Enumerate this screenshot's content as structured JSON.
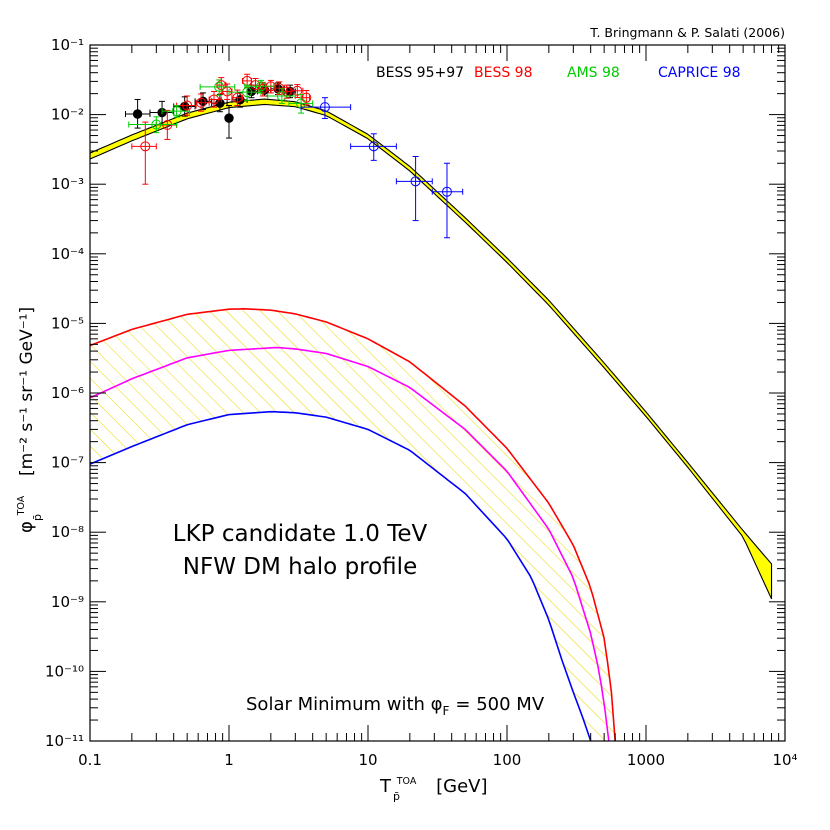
{
  "chart_data": {
    "type": "line",
    "credit": "T. Bringmann & P. Salati (2006)",
    "xlabel": {
      "base": "T",
      "sub": "p̄",
      "sup": "TOA",
      "units": "[GeV]"
    },
    "ylabel": {
      "base": "φ",
      "sub": "p̄",
      "sup": "TOA",
      "units": "[m⁻² s⁻¹ sr⁻¹ GeV⁻¹]"
    },
    "xscale": "log",
    "yscale": "log",
    "xlim": [
      0.1,
      10000
    ],
    "ylim": [
      1e-11,
      0.1
    ],
    "x_tick_labels": [
      {
        "v": 0.1,
        "label": "0.1"
      },
      {
        "v": 1,
        "label": "1"
      },
      {
        "v": 10,
        "label": "10"
      },
      {
        "v": 100,
        "label": "100"
      },
      {
        "v": 1000,
        "label": "1000"
      },
      {
        "v": 10000,
        "label": "10⁴"
      }
    ],
    "y_tick_labels": [
      {
        "v": -1,
        "label": "10⁻¹"
      },
      {
        "v": -2,
        "label": "10⁻²"
      },
      {
        "v": -3,
        "label": "10⁻³"
      },
      {
        "v": -4,
        "label": "10⁻⁴"
      },
      {
        "v": -5,
        "label": "10⁻⁵"
      },
      {
        "v": -6,
        "label": "10⁻⁶"
      },
      {
        "v": -7,
        "label": "10⁻⁷"
      },
      {
        "v": -8,
        "label": "10⁻⁸"
      },
      {
        "v": -9,
        "label": "10⁻⁹"
      },
      {
        "v": -10,
        "label": "10⁻¹⁰"
      },
      {
        "v": -11,
        "label": "10⁻¹¹"
      }
    ],
    "legend": [
      {
        "name": "BESS 95+97",
        "color": "#000000"
      },
      {
        "name": "BESS 98",
        "color": "#ff0000"
      },
      {
        "name": "AMS 98",
        "color": "#00cc00"
      },
      {
        "name": "CAPRICE 98",
        "color": "#0000ff"
      }
    ],
    "legend_position": "top-right",
    "annotations": [
      "LKP candidate 1.0 TeV",
      "NFW DM halo profile",
      "Solar Minimum with φ"
    ],
    "solar_sub": "F",
    "solar_value": "= 500 MV",
    "background_band": {
      "color": "#ffff00",
      "x": [
        0.1,
        0.2,
        0.5,
        1,
        1.8,
        3,
        5,
        10,
        20,
        50,
        100,
        200,
        500,
        1000,
        2000,
        5000,
        8000
      ],
      "upper": [
        0.0028,
        0.0051,
        0.0105,
        0.0151,
        0.0167,
        0.0153,
        0.0113,
        0.0052,
        0.0018,
        0.00033,
        8.7e-05,
        2.15e-05,
        2.7e-06,
        5.35e-07,
        1e-07,
        1.05e-08,
        3.5e-09
      ],
      "lower": [
        0.0023,
        0.0042,
        0.0087,
        0.0126,
        0.014,
        0.013,
        0.0097,
        0.0045,
        0.00155,
        0.000285,
        7.5e-05,
        1.83e-05,
        2.3e-06,
        4.6e-07,
        8.55e-08,
        8.5e-09,
        1.1e-09
      ]
    },
    "signal_curves": [
      {
        "color": "#ff0000",
        "x": [
          0.1,
          0.2,
          0.5,
          1,
          1.3,
          2,
          3,
          5,
          10,
          20,
          50,
          100,
          200,
          300,
          400,
          500,
          560,
          600
        ],
        "y": [
          4.8e-06,
          8.2e-06,
          1.35e-05,
          1.6e-05,
          1.62e-05,
          1.55e-05,
          1.37e-05,
          1.05e-05,
          6e-06,
          2.8e-06,
          6.5e-07,
          1.6e-07,
          2.6e-08,
          6.5e-09,
          1.6e-09,
          3e-10,
          6e-11,
          1e-11
        ]
      },
      {
        "color": "#ff00ff",
        "x": [
          0.1,
          0.2,
          0.5,
          1,
          2.2,
          3,
          5,
          10,
          20,
          50,
          100,
          200,
          300,
          400,
          460,
          500,
          540
        ],
        "y": [
          8.5e-07,
          1.6e-06,
          3.2e-06,
          4.1e-06,
          4.5e-06,
          4.3e-06,
          3.7e-06,
          2.4e-06,
          1.2e-06,
          3e-07,
          7.5e-08,
          1.1e-08,
          2.2e-09,
          3.5e-10,
          1e-10,
          3.5e-11,
          1e-11
        ]
      },
      {
        "color": "#0000ff",
        "x": [
          0.1,
          0.2,
          0.5,
          1,
          2,
          3,
          5,
          10,
          20,
          50,
          100,
          150,
          200,
          250,
          300,
          350,
          400
        ],
        "y": [
          9.5e-08,
          1.7e-07,
          3.5e-07,
          4.9e-07,
          5.4e-07,
          5.2e-07,
          4.5e-07,
          3e-07,
          1.5e-07,
          3.6e-08,
          8e-09,
          2.2e-09,
          5.5e-10,
          1.4e-10,
          5e-11,
          2.2e-11,
          1e-11
        ]
      }
    ],
    "datasets": [
      {
        "name": "BESS 95+97",
        "color": "#000000",
        "marker": "filled-circle",
        "points": [
          {
            "x": 0.22,
            "y": 0.0102,
            "xlo": 0.18,
            "xhi": 0.27,
            "ylo": 0.0064,
            "yhi": 0.0165
          },
          {
            "x": 0.33,
            "y": 0.0107,
            "xlo": 0.27,
            "xhi": 0.4,
            "ylo": 0.0071,
            "yhi": 0.0155
          },
          {
            "x": 0.48,
            "y": 0.0131,
            "xlo": 0.4,
            "xhi": 0.57,
            "ylo": 0.0095,
            "yhi": 0.018
          },
          {
            "x": 0.65,
            "y": 0.0155,
            "xlo": 0.57,
            "xhi": 0.75,
            "ylo": 0.0118,
            "yhi": 0.0205
          },
          {
            "x": 0.86,
            "y": 0.0146,
            "xlo": 0.75,
            "xhi": 0.97,
            "ylo": 0.011,
            "yhi": 0.0195
          },
          {
            "x": 1.0,
            "y": 0.0089,
            "xlo": 0.95,
            "xhi": 1.05,
            "ylo": 0.0046,
            "yhi": 0.0135
          },
          {
            "x": 1.2,
            "y": 0.0163,
            "xlo": 1.05,
            "xhi": 1.35,
            "ylo": 0.0128,
            "yhi": 0.0205
          },
          {
            "x": 1.45,
            "y": 0.0215,
            "xlo": 1.35,
            "xhi": 1.6,
            "ylo": 0.0175,
            "yhi": 0.0265
          },
          {
            "x": 1.8,
            "y": 0.0225,
            "xlo": 1.6,
            "xhi": 2.0,
            "ylo": 0.0185,
            "yhi": 0.0275
          },
          {
            "x": 2.25,
            "y": 0.0235,
            "xlo": 2.0,
            "xhi": 2.5,
            "ylo": 0.0195,
            "yhi": 0.0285
          },
          {
            "x": 2.75,
            "y": 0.0215,
            "xlo": 2.5,
            "xhi": 3.0,
            "ylo": 0.0175,
            "yhi": 0.0265
          }
        ]
      },
      {
        "name": "BESS 98",
        "color": "#ff0000",
        "marker": "open-circle",
        "points": [
          {
            "x": 0.25,
            "y": 0.0035,
            "xlo": 0.2,
            "xhi": 0.3,
            "ylo": 0.001,
            "yhi": 0.0078
          },
          {
            "x": 0.36,
            "y": 0.0071,
            "xlo": 0.3,
            "xhi": 0.42,
            "ylo": 0.0044,
            "yhi": 0.0115
          },
          {
            "x": 0.5,
            "y": 0.0135,
            "xlo": 0.42,
            "xhi": 0.58,
            "ylo": 0.0098,
            "yhi": 0.0185
          },
          {
            "x": 0.63,
            "y": 0.0148,
            "xlo": 0.58,
            "xhi": 0.72,
            "ylo": 0.0112,
            "yhi": 0.0198
          },
          {
            "x": 0.78,
            "y": 0.0165,
            "xlo": 0.72,
            "xhi": 0.88,
            "ylo": 0.0128,
            "yhi": 0.0215
          },
          {
            "x": 0.88,
            "y": 0.0265,
            "xlo": 0.82,
            "xhi": 0.95,
            "ylo": 0.02,
            "yhi": 0.034
          },
          {
            "x": 0.97,
            "y": 0.0215,
            "xlo": 0.9,
            "xhi": 1.05,
            "ylo": 0.0165,
            "yhi": 0.0275
          },
          {
            "x": 1.15,
            "y": 0.0175,
            "xlo": 1.05,
            "xhi": 1.25,
            "ylo": 0.0135,
            "yhi": 0.0225
          },
          {
            "x": 1.35,
            "y": 0.0305,
            "xlo": 1.25,
            "xhi": 1.45,
            "ylo": 0.0245,
            "yhi": 0.038
          },
          {
            "x": 1.55,
            "y": 0.0265,
            "xlo": 1.45,
            "xhi": 1.65,
            "ylo": 0.021,
            "yhi": 0.033
          },
          {
            "x": 1.75,
            "y": 0.0235,
            "xlo": 1.65,
            "xhi": 1.85,
            "ylo": 0.0185,
            "yhi": 0.029
          },
          {
            "x": 2.0,
            "y": 0.0255,
            "xlo": 1.85,
            "xhi": 2.15,
            "ylo": 0.0205,
            "yhi": 0.031
          },
          {
            "x": 2.3,
            "y": 0.024,
            "xlo": 2.15,
            "xhi": 2.45,
            "ylo": 0.0195,
            "yhi": 0.0295
          },
          {
            "x": 2.6,
            "y": 0.0215,
            "xlo": 2.45,
            "xhi": 2.8,
            "ylo": 0.0172,
            "yhi": 0.0265
          },
          {
            "x": 3.1,
            "y": 0.022,
            "xlo": 2.8,
            "xhi": 3.4,
            "ylo": 0.0176,
            "yhi": 0.027
          },
          {
            "x": 3.6,
            "y": 0.0175,
            "xlo": 3.4,
            "xhi": 3.8,
            "ylo": 0.0138,
            "yhi": 0.0222
          }
        ]
      },
      {
        "name": "AMS 98",
        "color": "#00cc00",
        "marker": "open-circle",
        "points": [
          {
            "x": 0.3,
            "y": 0.0072,
            "xlo": 0.19,
            "xhi": 0.42,
            "ylo": 0.0055,
            "yhi": 0.0093
          },
          {
            "x": 0.42,
            "y": 0.0112,
            "xlo": 0.33,
            "xhi": 0.52,
            "ylo": 0.0092,
            "yhi": 0.0135
          },
          {
            "x": 0.85,
            "y": 0.025,
            "xlo": 0.62,
            "xhi": 1.1,
            "ylo": 0.019,
            "yhi": 0.0315
          },
          {
            "x": 1.35,
            "y": 0.021,
            "xlo": 1.0,
            "xhi": 1.7,
            "ylo": 0.016,
            "yhi": 0.0265
          },
          {
            "x": 1.7,
            "y": 0.0255,
            "xlo": 1.3,
            "xhi": 2.1,
            "ylo": 0.0205,
            "yhi": 0.031
          },
          {
            "x": 2.4,
            "y": 0.0185,
            "xlo": 1.9,
            "xhi": 3.0,
            "ylo": 0.0145,
            "yhi": 0.0235
          },
          {
            "x": 3.3,
            "y": 0.0145,
            "xlo": 2.7,
            "xhi": 4.0,
            "ylo": 0.0105,
            "yhi": 0.0195
          }
        ]
      },
      {
        "name": "CAPRICE 98",
        "color": "#0000ff",
        "marker": "open-circle",
        "points": [
          {
            "x": 4.9,
            "y": 0.0128,
            "xlo": 3.3,
            "xhi": 7.5,
            "ylo": 0.0088,
            "yhi": 0.0175
          },
          {
            "x": 11,
            "y": 0.0035,
            "xlo": 7.5,
            "xhi": 16,
            "ylo": 0.0022,
            "yhi": 0.0053
          },
          {
            "x": 22,
            "y": 0.0011,
            "xlo": 16,
            "xhi": 29,
            "ylo": 0.0003,
            "yhi": 0.0025
          },
          {
            "x": 37,
            "y": 0.00078,
            "xlo": 29,
            "xhi": 48,
            "ylo": 0.00017,
            "yhi": 0.002
          }
        ]
      }
    ]
  }
}
